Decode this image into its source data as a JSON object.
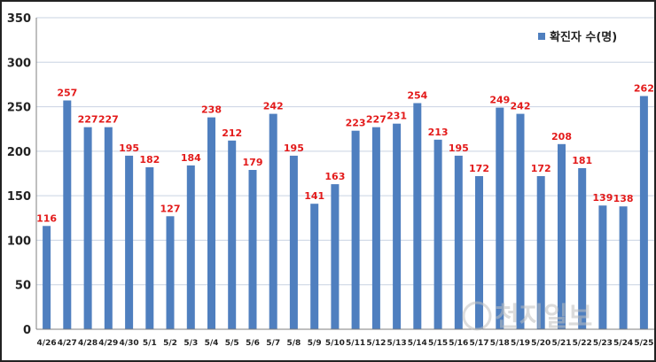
{
  "chart_data": {
    "type": "bar",
    "categories": [
      "4/26",
      "4/27",
      "4/28",
      "4/29",
      "4/30",
      "5/1",
      "5/2",
      "5/3",
      "5/4",
      "5/5",
      "5/6",
      "5/7",
      "5/8",
      "5/9",
      "5/10",
      "5/11",
      "5/12",
      "5/13",
      "5/14",
      "5/15",
      "5/16",
      "5/17",
      "5/18",
      "5/19",
      "5/20",
      "5/21",
      "5/22",
      "5/23",
      "5/24",
      "5/25"
    ],
    "series": [
      {
        "name": "확진자 수(명)",
        "values": [
          116,
          257,
          227,
          227,
          195,
          182,
          127,
          184,
          238,
          212,
          179,
          242,
          195,
          141,
          163,
          223,
          227,
          231,
          254,
          213,
          195,
          172,
          249,
          242,
          172,
          208,
          181,
          139,
          138,
          262
        ]
      }
    ],
    "ylim": [
      0,
      350
    ],
    "yticks": [
      0,
      50,
      100,
      150,
      200,
      250,
      300,
      350
    ],
    "grid": true,
    "legend_position": "top-right",
    "data_labels": true,
    "colors": {
      "bar": "#4f7fbf",
      "label": "#e31a1a",
      "grid": "#c9d3e2"
    }
  },
  "watermark": {
    "text": "천지일보"
  }
}
